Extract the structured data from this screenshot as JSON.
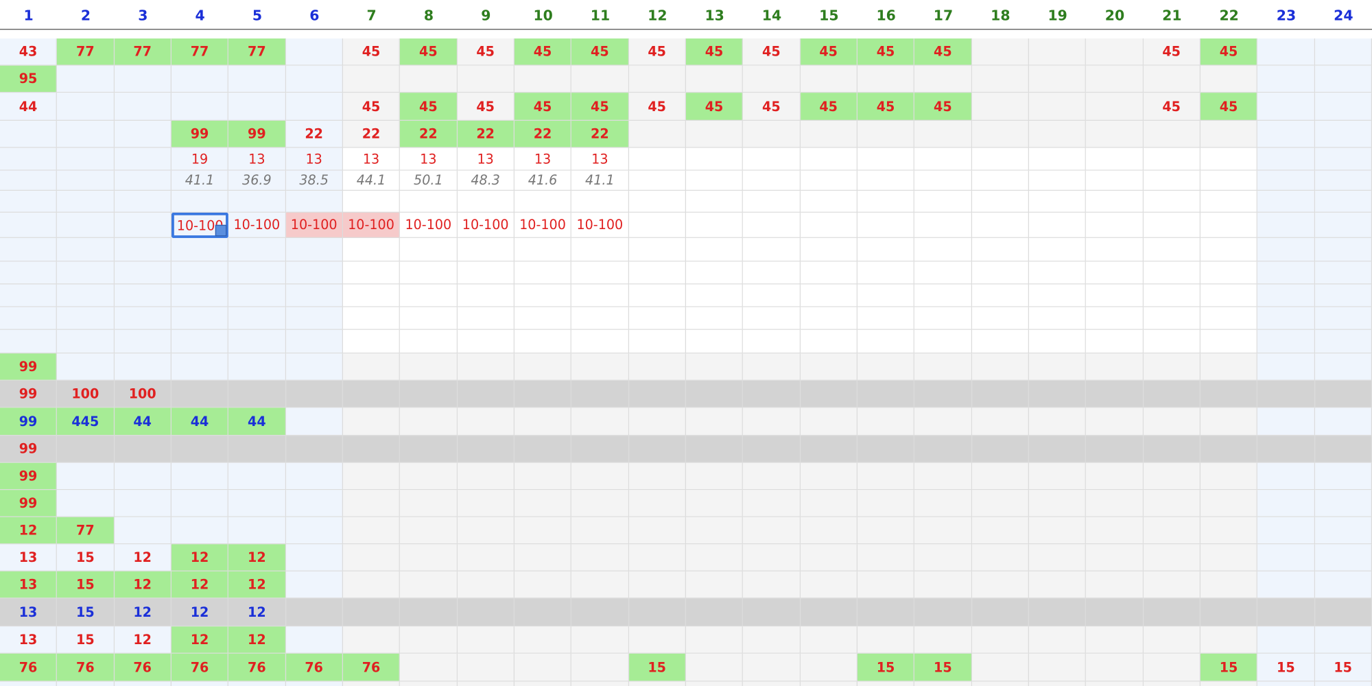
{
  "header": {
    "columns": [
      "1",
      "2",
      "3",
      "4",
      "5",
      "6",
      "7",
      "8",
      "9",
      "10",
      "11",
      "12",
      "13",
      "14",
      "15",
      "16",
      "17",
      "18",
      "19",
      "20",
      "21",
      "22",
      "23",
      "24"
    ]
  },
  "table": {
    "rows": [
      [
        "43",
        "77",
        "77",
        "77",
        "77",
        null,
        "45",
        "45",
        "45",
        "45",
        "45",
        "45",
        "45",
        "45",
        "45",
        "45",
        "45",
        null,
        null,
        null,
        "45",
        "45",
        null,
        null
      ],
      [
        "95",
        null,
        null,
        null,
        null,
        null,
        null,
        null,
        null,
        null,
        null,
        null,
        null,
        null,
        null,
        null,
        null,
        null,
        null,
        null,
        null,
        null,
        null,
        null
      ],
      [
        "44",
        null,
        null,
        null,
        null,
        null,
        "45",
        "45",
        "45",
        "45",
        "45",
        "45",
        "45",
        "45",
        "45",
        "45",
        "45",
        null,
        null,
        null,
        "45",
        "45",
        null,
        null
      ],
      [
        null,
        null,
        null,
        "99",
        "99",
        "22",
        "22",
        "22",
        "22",
        "22",
        "22",
        null,
        null,
        null,
        null,
        null,
        null,
        null,
        null,
        null,
        null,
        null,
        null,
        null
      ],
      [
        null,
        null,
        null,
        "19",
        "13",
        "13",
        "13",
        "13",
        "13",
        "13",
        "13",
        null,
        null,
        null,
        null,
        null,
        null,
        null,
        null,
        null,
        null,
        null,
        null,
        null
      ],
      [
        null,
        null,
        null,
        "41.1",
        "36.9",
        "38.5",
        "44.1",
        "50.1",
        "48.3",
        "41.6",
        "41.1",
        null,
        null,
        null,
        null,
        null,
        null,
        null,
        null,
        null,
        null,
        null,
        null,
        null
      ],
      [
        null,
        null,
        null,
        null,
        null,
        null,
        null,
        null,
        null,
        null,
        null,
        null,
        null,
        null,
        null,
        null,
        null,
        null,
        null,
        null,
        null,
        null,
        null,
        null
      ],
      [
        null,
        null,
        null,
        "10-100",
        "10-100",
        "10-100",
        "10-100",
        "10-100",
        "10-100",
        "10-100",
        "10-100",
        null,
        null,
        null,
        null,
        null,
        null,
        null,
        null,
        null,
        null,
        null,
        null,
        null
      ],
      [
        null,
        null,
        null,
        null,
        null,
        null,
        null,
        null,
        null,
        null,
        null,
        null,
        null,
        null,
        null,
        null,
        null,
        null,
        null,
        null,
        null,
        null,
        null,
        null
      ],
      [
        null,
        null,
        null,
        null,
        null,
        null,
        null,
        null,
        null,
        null,
        null,
        null,
        null,
        null,
        null,
        null,
        null,
        null,
        null,
        null,
        null,
        null,
        null,
        null
      ],
      [
        null,
        null,
        null,
        null,
        null,
        null,
        null,
        null,
        null,
        null,
        null,
        null,
        null,
        null,
        null,
        null,
        null,
        null,
        null,
        null,
        null,
        null,
        null,
        null
      ],
      [
        null,
        null,
        null,
        null,
        null,
        null,
        null,
        null,
        null,
        null,
        null,
        null,
        null,
        null,
        null,
        null,
        null,
        null,
        null,
        null,
        null,
        null,
        null,
        null
      ],
      [
        null,
        null,
        null,
        null,
        null,
        null,
        null,
        null,
        null,
        null,
        null,
        null,
        null,
        null,
        null,
        null,
        null,
        null,
        null,
        null,
        null,
        null,
        null,
        null
      ],
      [
        "99",
        null,
        null,
        null,
        null,
        null,
        null,
        null,
        null,
        null,
        null,
        null,
        null,
        null,
        null,
        null,
        null,
        null,
        null,
        null,
        null,
        null,
        null,
        null
      ],
      [
        "99",
        "100",
        "100",
        null,
        null,
        null,
        null,
        null,
        null,
        null,
        null,
        null,
        null,
        null,
        null,
        null,
        null,
        null,
        null,
        null,
        null,
        null,
        null,
        null
      ],
      [
        "99",
        "445",
        "44",
        "44",
        "44",
        null,
        null,
        null,
        null,
        null,
        null,
        null,
        null,
        null,
        null,
        null,
        null,
        null,
        null,
        null,
        null,
        null,
        null,
        null
      ],
      [
        "99",
        null,
        null,
        null,
        null,
        null,
        null,
        null,
        null,
        null,
        null,
        null,
        null,
        null,
        null,
        null,
        null,
        null,
        null,
        null,
        null,
        null,
        null,
        null
      ],
      [
        "99",
        null,
        null,
        null,
        null,
        null,
        null,
        null,
        null,
        null,
        null,
        null,
        null,
        null,
        null,
        null,
        null,
        null,
        null,
        null,
        null,
        null,
        null,
        null
      ],
      [
        "99",
        null,
        null,
        null,
        null,
        null,
        null,
        null,
        null,
        null,
        null,
        null,
        null,
        null,
        null,
        null,
        null,
        null,
        null,
        null,
        null,
        null,
        null,
        null
      ],
      [
        "12",
        "77",
        null,
        null,
        null,
        null,
        null,
        null,
        null,
        null,
        null,
        null,
        null,
        null,
        null,
        null,
        null,
        null,
        null,
        null,
        null,
        null,
        null,
        null
      ],
      [
        "13",
        "15",
        "12",
        "12",
        "12",
        null,
        null,
        null,
        null,
        null,
        null,
        null,
        null,
        null,
        null,
        null,
        null,
        null,
        null,
        null,
        null,
        null,
        null,
        null
      ],
      [
        "13",
        "15",
        "12",
        "12",
        "12",
        null,
        null,
        null,
        null,
        null,
        null,
        null,
        null,
        null,
        null,
        null,
        null,
        null,
        null,
        null,
        null,
        null,
        null,
        null
      ],
      [
        "13",
        "15",
        "12",
        "12",
        "12",
        null,
        null,
        null,
        null,
        null,
        null,
        null,
        null,
        null,
        null,
        null,
        null,
        null,
        null,
        null,
        null,
        null,
        null,
        null
      ],
      [
        "13",
        "15",
        "12",
        "12",
        "12",
        null,
        null,
        null,
        null,
        null,
        null,
        null,
        null,
        null,
        null,
        null,
        null,
        null,
        null,
        null,
        null,
        null,
        null,
        null
      ],
      [
        "76",
        "76",
        "76",
        "76",
        "76",
        "76",
        "76",
        null,
        null,
        null,
        null,
        "15",
        null,
        null,
        null,
        "15",
        "15",
        null,
        null,
        null,
        null,
        "15",
        "15",
        "15"
      ]
    ]
  }
}
